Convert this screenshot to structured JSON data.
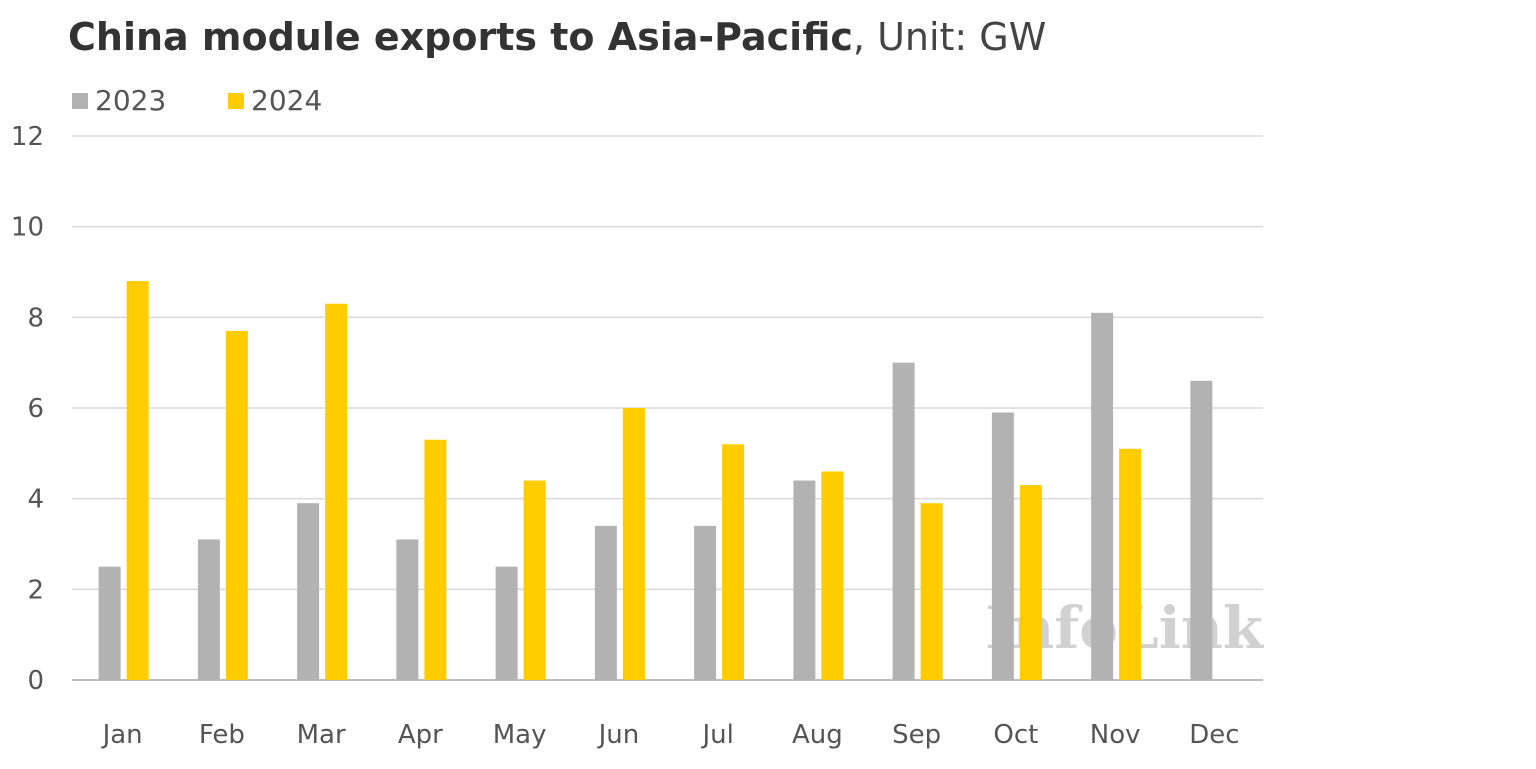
{
  "title": {
    "bold": "China module exports to Asia-Pacific",
    "rest": ", Unit: GW"
  },
  "watermark": "InfoLink",
  "chart_data": {
    "type": "bar",
    "categories": [
      "Jan",
      "Feb",
      "Mar",
      "Apr",
      "May",
      "Jun",
      "Jul",
      "Aug",
      "Sep",
      "Oct",
      "Nov",
      "Dec"
    ],
    "series": [
      {
        "name": "2023",
        "color": "#b2b2b2",
        "values": [
          2.5,
          3.1,
          3.9,
          3.1,
          2.5,
          3.4,
          3.4,
          4.4,
          7.0,
          5.9,
          8.1,
          6.6
        ]
      },
      {
        "name": "2024",
        "color": "#ffcc00",
        "values": [
          8.8,
          7.7,
          8.3,
          5.3,
          4.4,
          6.0,
          5.2,
          4.6,
          3.9,
          4.3,
          5.1,
          null
        ]
      }
    ],
    "yticks": [
      "0",
      "2",
      "4",
      "6",
      "8",
      "10",
      "12"
    ],
    "ylim": [
      0,
      12
    ],
    "grid": true,
    "legend": "top-left"
  }
}
